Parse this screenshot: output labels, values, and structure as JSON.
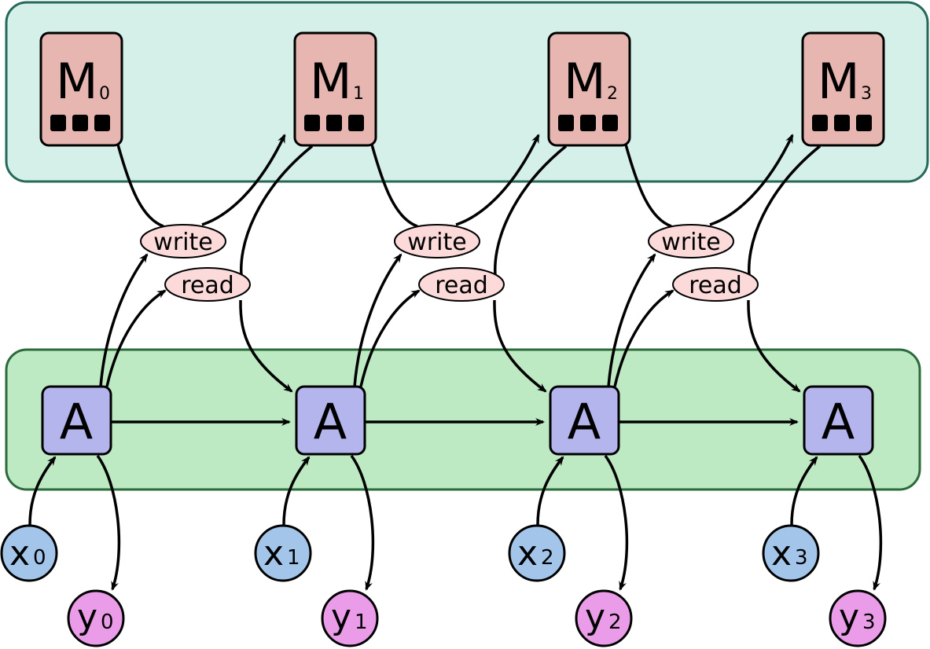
{
  "colors": {
    "memory_band": "#d5f0e8",
    "memory_band_stroke": "#26695a",
    "controller_band": "#bde9c3",
    "controller_band_stroke": "#2b6a3a",
    "memory_cell": "#e8b6b0",
    "operation": "#fcdada",
    "controller": "#b5b5ee",
    "input": "#a3c5ea",
    "output": "#ea9ce8"
  },
  "steps": [
    {
      "memory": "M",
      "memory_sub": "0",
      "write": "write",
      "read": "read",
      "controller": "A",
      "input": "x",
      "input_sub": "0",
      "output": "y",
      "output_sub": "0"
    },
    {
      "memory": "M",
      "memory_sub": "1",
      "write": "write",
      "read": "read",
      "controller": "A",
      "input": "x",
      "input_sub": "1",
      "output": "y",
      "output_sub": "1"
    },
    {
      "memory": "M",
      "memory_sub": "2",
      "write": "write",
      "read": "read",
      "controller": "A",
      "input": "x",
      "input_sub": "2",
      "output": "y",
      "output_sub": "2"
    },
    {
      "memory": "M",
      "memory_sub": "3",
      "controller": "A",
      "input": "x",
      "input_sub": "3",
      "output": "y",
      "output_sub": "3"
    }
  ]
}
